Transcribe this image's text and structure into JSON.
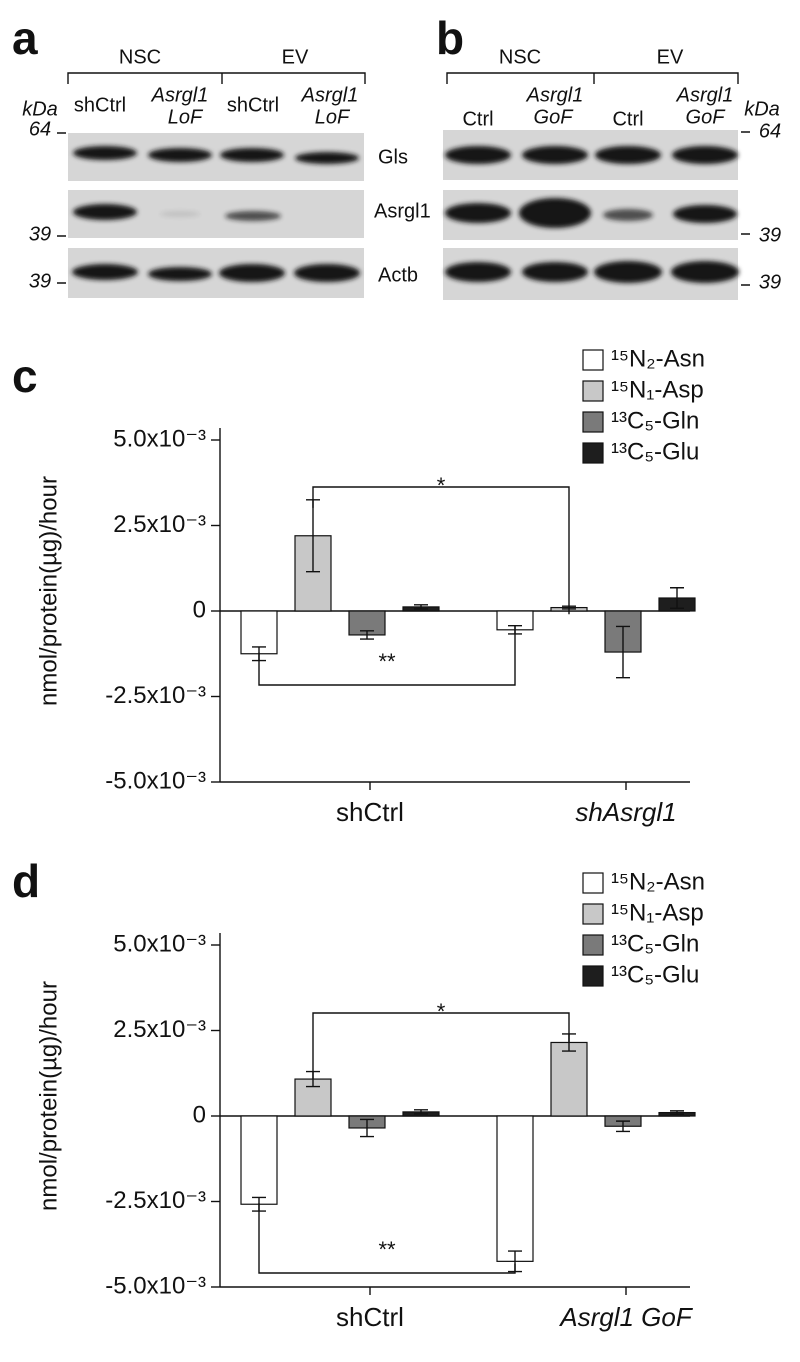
{
  "blots": [
    {
      "panel": "a",
      "groups": [
        "NSC",
        "EV"
      ],
      "lanes": [
        [
          "shCtrl"
        ],
        [
          "Asrgl1",
          "LoF"
        ],
        [
          "shCtrl"
        ],
        [
          "Asrgl1",
          "LoF"
        ]
      ],
      "kda": "kDa",
      "markers": [
        64,
        39,
        39
      ],
      "bands": [
        "Gls",
        "Asrgl1",
        "Actb"
      ]
    },
    {
      "panel": "b",
      "groups": [
        "NSC",
        "EV"
      ],
      "lanes": [
        [
          "Ctrl"
        ],
        [
          "Asrgl1",
          "GoF"
        ],
        [
          "Ctrl"
        ],
        [
          "Asrgl1",
          "GoF"
        ]
      ],
      "kda": "kDa",
      "markers": [
        64,
        39,
        39
      ]
    }
  ],
  "chart_data": [
    {
      "type": "bar",
      "panel": "c",
      "ylabel": "nmol/protein(µg)/hour",
      "categories": [
        "shCtrl",
        "shAsrgl1"
      ],
      "series": [
        {
          "name": "¹⁵N₂-Asn",
          "color": "#ffffff",
          "values": [
            -0.00125,
            -0.00055
          ],
          "errors": [
            0.0002,
            0.00012
          ]
        },
        {
          "name": "¹⁵N₁-Asp",
          "color": "#c8c8c8",
          "values": [
            0.0022,
            0.0001
          ],
          "errors": [
            0.00105,
            4e-05
          ]
        },
        {
          "name": "¹³C₅-Gln",
          "color": "#7a7a7a",
          "values": [
            -0.0007,
            -0.0012
          ],
          "errors": [
            0.00012,
            0.00075
          ]
        },
        {
          "name": "¹³C₅-Glu",
          "color": "#1e1e1e",
          "values": [
            0.00012,
            0.00038
          ],
          "errors": [
            6e-05,
            0.0003
          ]
        }
      ],
      "ylim": [
        -0.005,
        0.005
      ],
      "yticks": [
        {
          "value": -0.005,
          "label": "-5.0x10⁻³"
        },
        {
          "value": -0.0025,
          "label": "-2.5x10⁻³"
        },
        0,
        {
          "value": 0.0025,
          "label": "2.5x10⁻³"
        },
        {
          "value": 0.005,
          "label": "5.0x10⁻³"
        }
      ],
      "annotations": [
        "*",
        "**"
      ]
    },
    {
      "type": "bar",
      "panel": "d",
      "ylabel": "nmol/protein(µg)/hour",
      "categories": [
        "shCtrl",
        "Asrgl1 GoF"
      ],
      "series": [
        {
          "name": "¹⁵N₂-Asn",
          "color": "#ffffff",
          "values": [
            -0.00258,
            -0.00425
          ],
          "errors": [
            0.0002,
            0.0003
          ]
        },
        {
          "name": "¹⁵N₁-Asp",
          "color": "#c8c8c8",
          "values": [
            0.00108,
            0.00215
          ],
          "errors": [
            0.00022,
            0.00025
          ]
        },
        {
          "name": "¹³C₅-Gln",
          "color": "#7a7a7a",
          "values": [
            -0.00035,
            -0.0003
          ],
          "errors": [
            0.00025,
            0.00015
          ]
        },
        {
          "name": "¹³C₅-Glu",
          "color": "#1e1e1e",
          "values": [
            0.00012,
            0.0001
          ],
          "errors": [
            6e-05,
            5e-05
          ]
        }
      ],
      "ylim": [
        -0.005,
        0.005
      ],
      "yticks": [
        {
          "value": -0.005,
          "label": "-5.0x10⁻³"
        },
        {
          "value": -0.0025,
          "label": "-2.5x10⁻³"
        },
        0,
        {
          "value": 0.0025,
          "label": "2.5x10⁻³"
        },
        {
          "value": 0.005,
          "label": "5.0x10⁻³"
        }
      ],
      "annotations": [
        "*",
        "**"
      ]
    }
  ]
}
